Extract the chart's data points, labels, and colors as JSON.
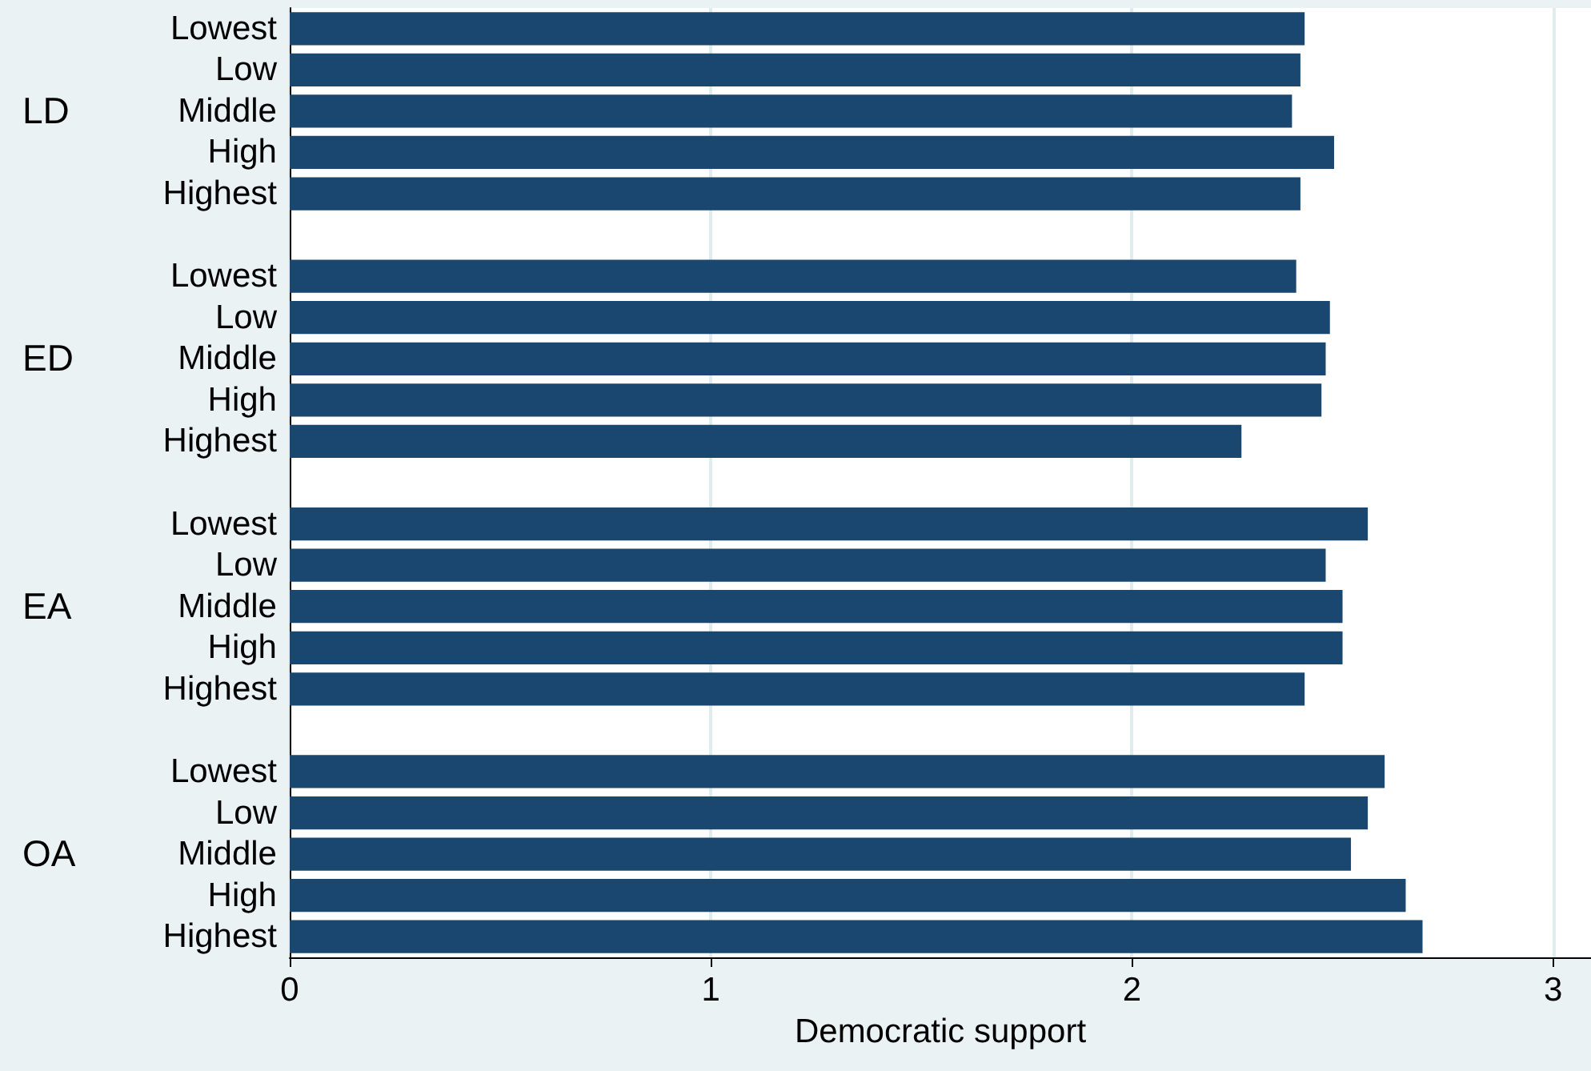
{
  "chart_data": {
    "type": "bar",
    "orientation": "horizontal",
    "xlabel": "Democratic support",
    "categories": [
      "Lowest",
      "Low",
      "Middle",
      "High",
      "Highest",
      null,
      "Lowest",
      "Low",
      "Middle",
      "High",
      "Highest",
      null,
      "Lowest",
      "Low",
      "Middle",
      "High",
      "Highest",
      null,
      "Lowest",
      "Low",
      "Middle",
      "High",
      "Highest"
    ],
    "series": [
      {
        "color": "#1a476f",
        "values": [
          2.41,
          2.4,
          2.38,
          2.48,
          2.4,
          null,
          2.39,
          2.47,
          2.46,
          2.45,
          2.26,
          null,
          2.56,
          2.46,
          2.5,
          2.5,
          2.41,
          null,
          2.6,
          2.56,
          2.52,
          2.65,
          2.69
        ]
      }
    ],
    "annotations": [
      "LD",
      "ED",
      "EA",
      "OA"
    ],
    "xlim": [
      0,
      3.09
    ],
    "xticks": [
      0,
      1,
      2,
      3
    ],
    "grid": "x"
  }
}
